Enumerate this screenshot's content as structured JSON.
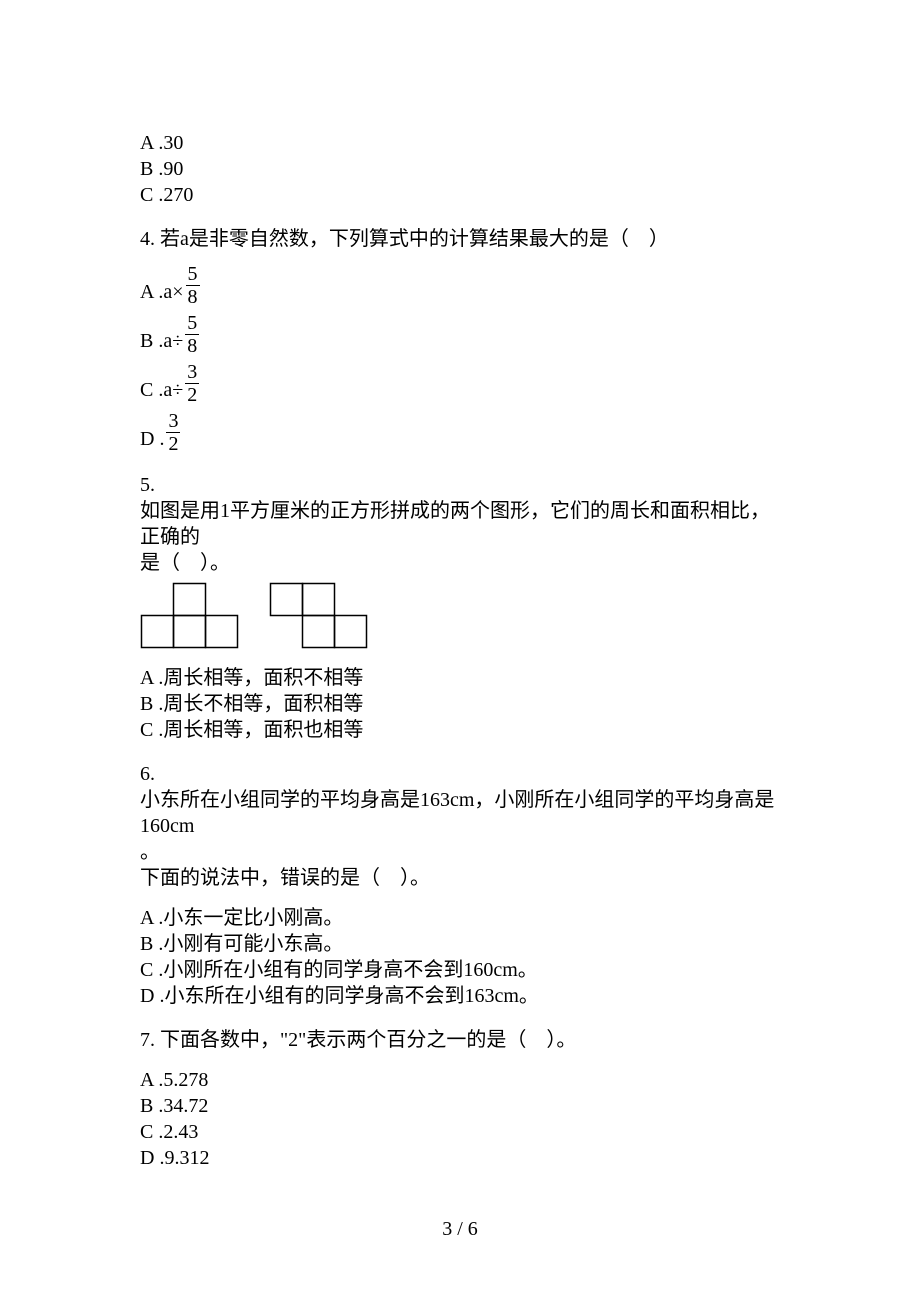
{
  "q3": {
    "optA": "A .30",
    "optB": "B .90",
    "optC": "C .270"
  },
  "q4": {
    "stem": "4. 若a是非零自然数，下列算式中的计算结果最大的是（　）",
    "optA_lbl": "A .a×",
    "optA_num": "5",
    "optA_den": "8",
    "optB_lbl": "B .a÷",
    "optB_num": "5",
    "optB_den": "8",
    "optC_lbl": "C .a÷",
    "optC_num": "3",
    "optC_den": "2",
    "optD_lbl": "D .",
    "optD_num": "3",
    "optD_den": "2"
  },
  "q5": {
    "num": "5.",
    "stem1": "如图是用1平方厘米的正方形拼成的两个图形，它们的周长和面积相比，正确的",
    "stem2": "是（　）。",
    "fig": {
      "cell": 32,
      "stroke": "#000000",
      "strokeWidth": 1.5,
      "shapeA": {
        "w": 3,
        "h": 2,
        "cells": [
          [
            1,
            0
          ],
          [
            0,
            1
          ],
          [
            1,
            1
          ],
          [
            2,
            1
          ]
        ]
      },
      "shapeB": {
        "w": 3,
        "h": 2,
        "cells": [
          [
            0,
            0
          ],
          [
            1,
            0
          ],
          [
            1,
            1
          ],
          [
            2,
            1
          ]
        ]
      }
    },
    "optA": "A .周长相等，面积不相等",
    "optB": "B .周长不相等，面积相等",
    "optC": "C .周长相等，面积也相等"
  },
  "q6": {
    "num": "6.",
    "stem1": "小东所在小组同学的平均身高是163cm，小刚所在小组同学的平均身高是160cm",
    "stem2": "。",
    "stem3": "下面的说法中，错误的是（　）。",
    "optA": "A .小东一定比小刚高。",
    "optB": "B .小刚有可能小东高。",
    "optC": "C .小刚所在小组有的同学身高不会到160cm。",
    "optD": "D .小东所在小组有的同学身高不会到163cm。"
  },
  "q7": {
    "stem": "7. 下面各数中，\"2\"表示两个百分之一的是（　）。",
    "optA": "A .5.278",
    "optB": "B .34.72",
    "optC": "C .2.43",
    "optD": "D .9.312"
  },
  "pageNum": "3 / 6"
}
